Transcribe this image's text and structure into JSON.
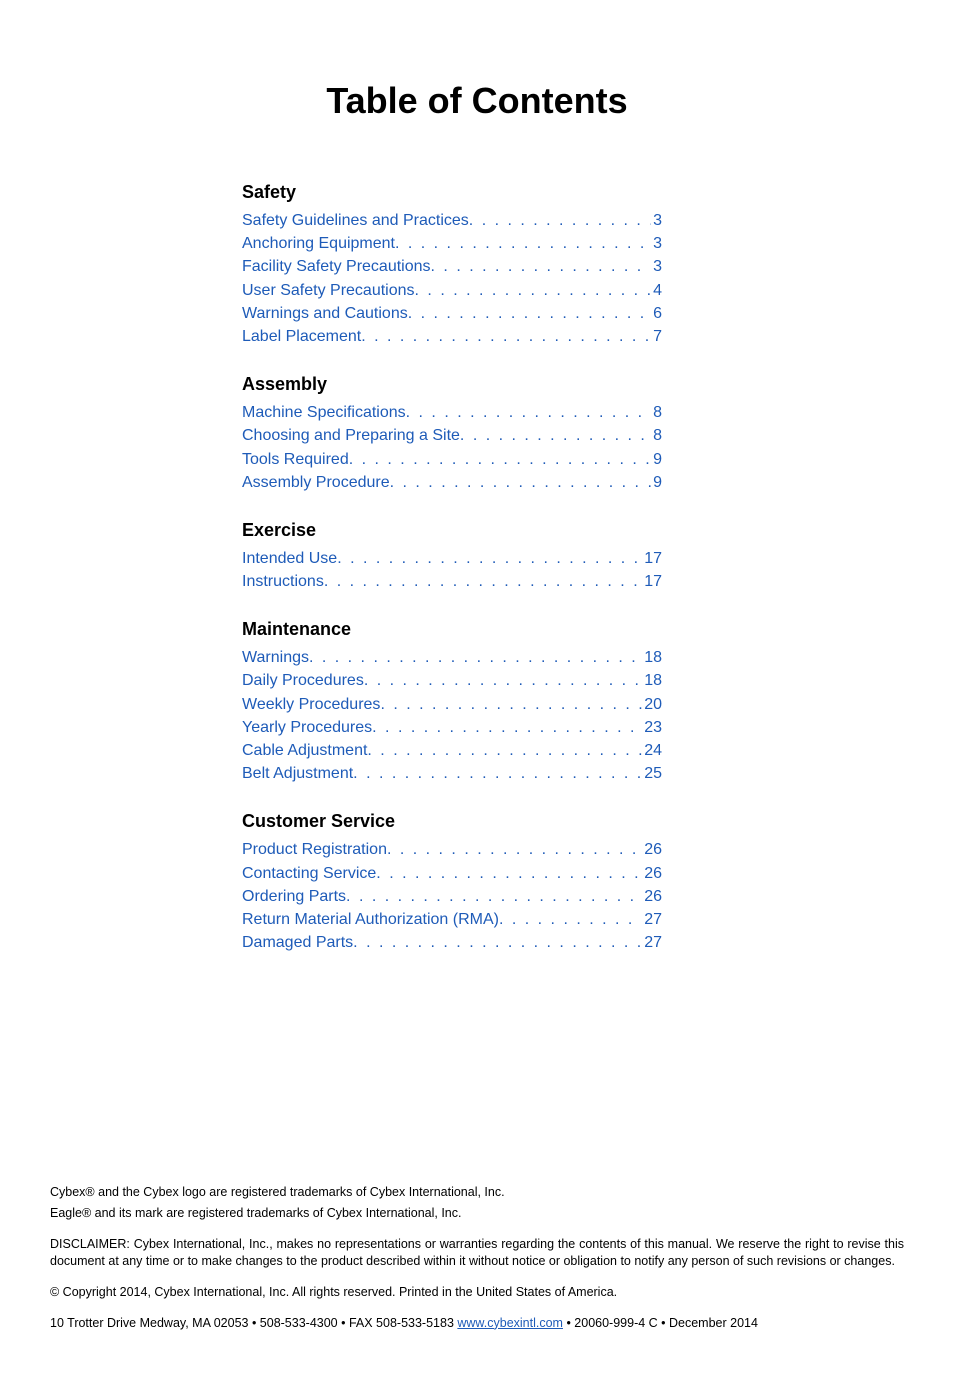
{
  "title": "Table of Contents",
  "link_color": "#1e5bb8",
  "text_color": "#000000",
  "background_color": "#ffffff",
  "title_fontsize": 36,
  "heading_fontsize": 18,
  "entry_fontsize": 16,
  "footer_fontsize": 12.5,
  "sections": [
    {
      "heading": "Safety",
      "entries": [
        {
          "label": "Safety Guidelines and Practices",
          "page": "3"
        },
        {
          "label": "Anchoring Equipment",
          "page": "3"
        },
        {
          "label": "Facility Safety Precautions",
          "page": "3"
        },
        {
          "label": "User Safety Precautions",
          "page": "4"
        },
        {
          "label": "Warnings and Cautions",
          "page": "6"
        },
        {
          "label": "Label Placement",
          "page": "7"
        }
      ]
    },
    {
      "heading": "Assembly",
      "entries": [
        {
          "label": "Machine Specifications",
          "page": "8"
        },
        {
          "label": "Choosing and Preparing a Site",
          "page": "8"
        },
        {
          "label": "Tools Required",
          "page": "9"
        },
        {
          "label": "Assembly Procedure",
          "page": "9"
        }
      ]
    },
    {
      "heading": "Exercise",
      "entries": [
        {
          "label": "Intended Use",
          "page": "17"
        },
        {
          "label": "Instructions",
          "page": "17"
        }
      ]
    },
    {
      "heading": "Maintenance",
      "entries": [
        {
          "label": "Warnings",
          "page": "18"
        },
        {
          "label": "Daily Procedures",
          "page": "18"
        },
        {
          "label": "Weekly Procedures",
          "page": "20"
        },
        {
          "label": "Yearly Procedures",
          "page": "23"
        },
        {
          "label": "Cable Adjustment",
          "page": "24"
        },
        {
          "label": "Belt Adjustment",
          "page": "25"
        }
      ]
    },
    {
      "heading": "Customer Service",
      "entries": [
        {
          "label": "Product Registration",
          "page": "26"
        },
        {
          "label": "Contacting Service",
          "page": "26"
        },
        {
          "label": "Ordering Parts",
          "page": "26"
        },
        {
          "label": "Return Material Authorization (RMA)",
          "page": "27"
        },
        {
          "label": "Damaged Parts",
          "page": "27"
        }
      ]
    }
  ],
  "footer": {
    "trademark1": "Cybex® and the Cybex logo are registered trademarks of Cybex International, Inc.",
    "trademark2": "Eagle® and its mark are registered trademarks of Cybex International, Inc.",
    "disclaimer": "DISCLAIMER: Cybex International, Inc., makes no representations or warranties regarding the contents of this manual. We reserve the right to revise this document at any time or to make changes to the product described within it without notice or obligation to notify any person of such revisions or changes.",
    "copyright": "© Copyright 2014, Cybex International, Inc. All rights reserved. Printed in the United States of America.",
    "contact_pre": "10 Trotter Drive Medway, MA 02053 • 508-533-4300 • FAX 508-533-5183 ",
    "contact_link": "www.cybexintl.com",
    "contact_post": " • 20060-999-4 C • December 2014"
  }
}
